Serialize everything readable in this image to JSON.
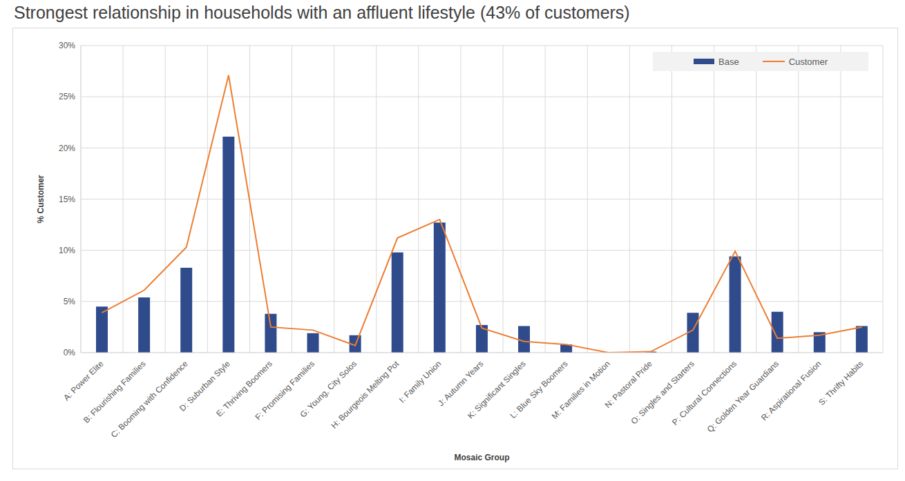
{
  "chart_data": {
    "type": "bar",
    "title": "Strongest relationship in households with an affluent lifestyle (43% of customers)",
    "x_label": "Mosaic Group",
    "y_label": "% Customer",
    "categories": [
      "A: Power Elite",
      "B: Flourishing Families",
      "C: Booming with Confidence",
      "D: Suburban Style",
      "E: Thriving Boomers",
      "F: Promising Families",
      "G: Young, City Solos",
      "H: Bourgeois Melting Pot",
      "I: Family Union",
      "J: Autumn Years",
      "K: Significant Singles",
      "L: Blue Sky Boomers",
      "M: Families in Motion",
      "N: Pastoral Pride",
      "O: Singles and Starters",
      "P: Cultural Connections",
      "Q: Golden Year Guardians",
      "R: Aspirational Fusion",
      "S: Thrifty Habits"
    ],
    "series": [
      {
        "name": "Base",
        "type": "bar",
        "color": "#2f4b8c",
        "values": [
          4.5,
          5.4,
          8.3,
          21.1,
          3.8,
          1.9,
          1.7,
          9.8,
          12.7,
          2.7,
          2.6,
          0.8,
          0.0,
          0.1,
          3.9,
          9.4,
          4.0,
          2.0,
          2.6
        ]
      },
      {
        "name": "Customer",
        "type": "line",
        "color": "#ed7d31",
        "values": [
          3.9,
          6.1,
          10.3,
          27.1,
          2.5,
          2.2,
          0.7,
          11.2,
          13.0,
          2.4,
          1.1,
          0.8,
          0.0,
          0.1,
          2.2,
          9.9,
          1.4,
          1.7,
          2.5
        ]
      }
    ],
    "ylim": [
      0,
      30
    ],
    "yticks": [
      {
        "value": 0,
        "label": "0%"
      },
      {
        "value": 5,
        "label": "5%"
      },
      {
        "value": 10,
        "label": "10%"
      },
      {
        "value": 15,
        "label": "15%"
      },
      {
        "value": 20,
        "label": "20%"
      },
      {
        "value": 25,
        "label": "25%"
      },
      {
        "value": 30,
        "label": "30%"
      }
    ],
    "grid": true,
    "legend": "upper right"
  }
}
